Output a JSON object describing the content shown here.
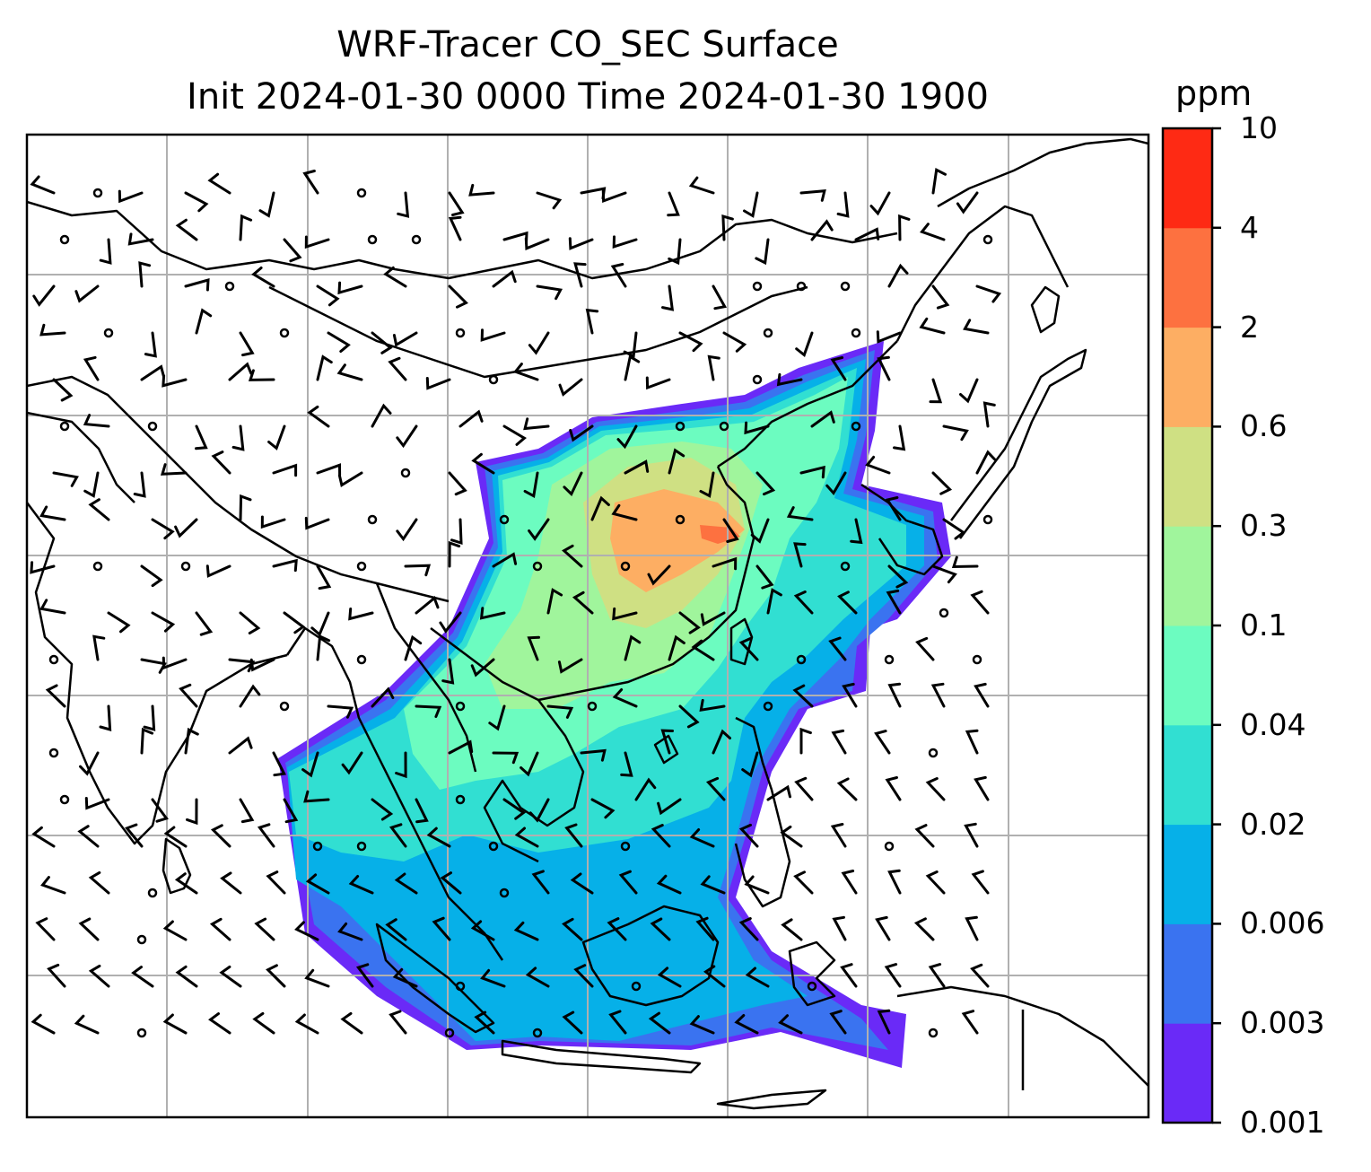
{
  "title": {
    "line1": "WRF-Tracer CO_SEC Surface",
    "line2": "Init 2024-01-30 0000 Time 2024-01-30 1900"
  },
  "colorbar": {
    "unit": "ppm",
    "levels": [
      "0.001",
      "0.003",
      "0.006",
      "0.02",
      "0.04",
      "0.1",
      "0.3",
      "0.6",
      "2",
      "4",
      "10"
    ],
    "colors": [
      "#6a2af7",
      "#3a73f0",
      "#06b0e8",
      "#31dfd2",
      "#6cfcc0",
      "#a0f59c",
      "#cfe083",
      "#fdae63",
      "#fd7140",
      "#fe2a14"
    ]
  },
  "map": {
    "field": "CO_SEC surface tracer concentration",
    "overlay": "wind barbs",
    "gridlines": true,
    "coastlines": true
  }
}
